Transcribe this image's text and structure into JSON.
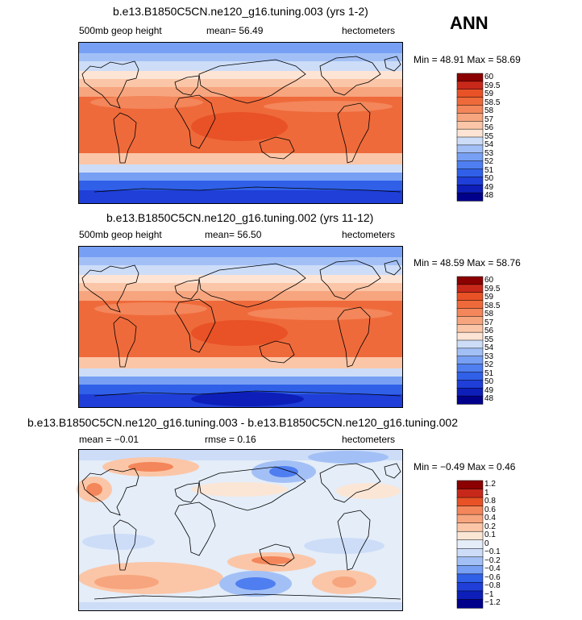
{
  "season": "ANN",
  "palettes": {
    "abs": [
      "#00008b",
      "#0d1fb8",
      "#1f3fd8",
      "#3060e8",
      "#4f7ef0",
      "#77a0f4",
      "#a3c0f6",
      "#cdddf8",
      "#fde4d4",
      "#fbc6a7",
      "#f7a57e",
      "#f3865a",
      "#ef6a3b",
      "#e85226",
      "#c8281a",
      "#8b0000"
    ],
    "diff": [
      "#00008b",
      "#0d1fb8",
      "#1f3fd8",
      "#3060e8",
      "#77a0f4",
      "#a3c0f6",
      "#cdddf8",
      "#e4edf8",
      "#fbe6d6",
      "#fbc6a7",
      "#f7a57e",
      "#f3865a",
      "#e85226",
      "#c8281a",
      "#8b0000"
    ]
  },
  "panels": [
    {
      "title": "b.e13.B1850C5CN.ne120_g16.tuning.003 (yrs 1-2)",
      "left_text": "500mb geop height",
      "mid_text": "mean=  56.49",
      "right_text": "hectometers",
      "stats": "Min =  48.91 Max =  58.69",
      "levels": [
        "60",
        "59.5",
        "59",
        "58.5",
        "58",
        "57",
        "56",
        "55",
        "54",
        "53",
        "52",
        "51",
        "50",
        "49",
        "48"
      ]
    },
    {
      "title": "b.e13.B1850C5CN.ne120_g16.tuning.002 (yrs 11-12)",
      "left_text": "500mb geop height",
      "mid_text": "mean=  56.50",
      "right_text": "hectometers",
      "stats": "Min =  48.59 Max =  58.76",
      "levels": [
        "60",
        "59.5",
        "59",
        "58.5",
        "58",
        "57",
        "56",
        "55",
        "54",
        "53",
        "52",
        "51",
        "50",
        "49",
        "48"
      ]
    },
    {
      "title": "b.e13.B1850C5CN.ne120_g16.tuning.003 - b.e13.B1850C5CN.ne120_g16.tuning.002",
      "left_text": "mean =  −0.01",
      "mid_text": "rmse =   0.16",
      "right_text": "hectometers",
      "stats": "Min =  −0.49 Max =   0.46",
      "levels": [
        "1.2",
        "1",
        "0.8",
        "0.6",
        "0.4",
        "0.2",
        "0.1",
        "0",
        "−0.1",
        "−0.2",
        "−0.4",
        "−0.6",
        "−0.8",
        "−1",
        "−1.2"
      ]
    }
  ]
}
